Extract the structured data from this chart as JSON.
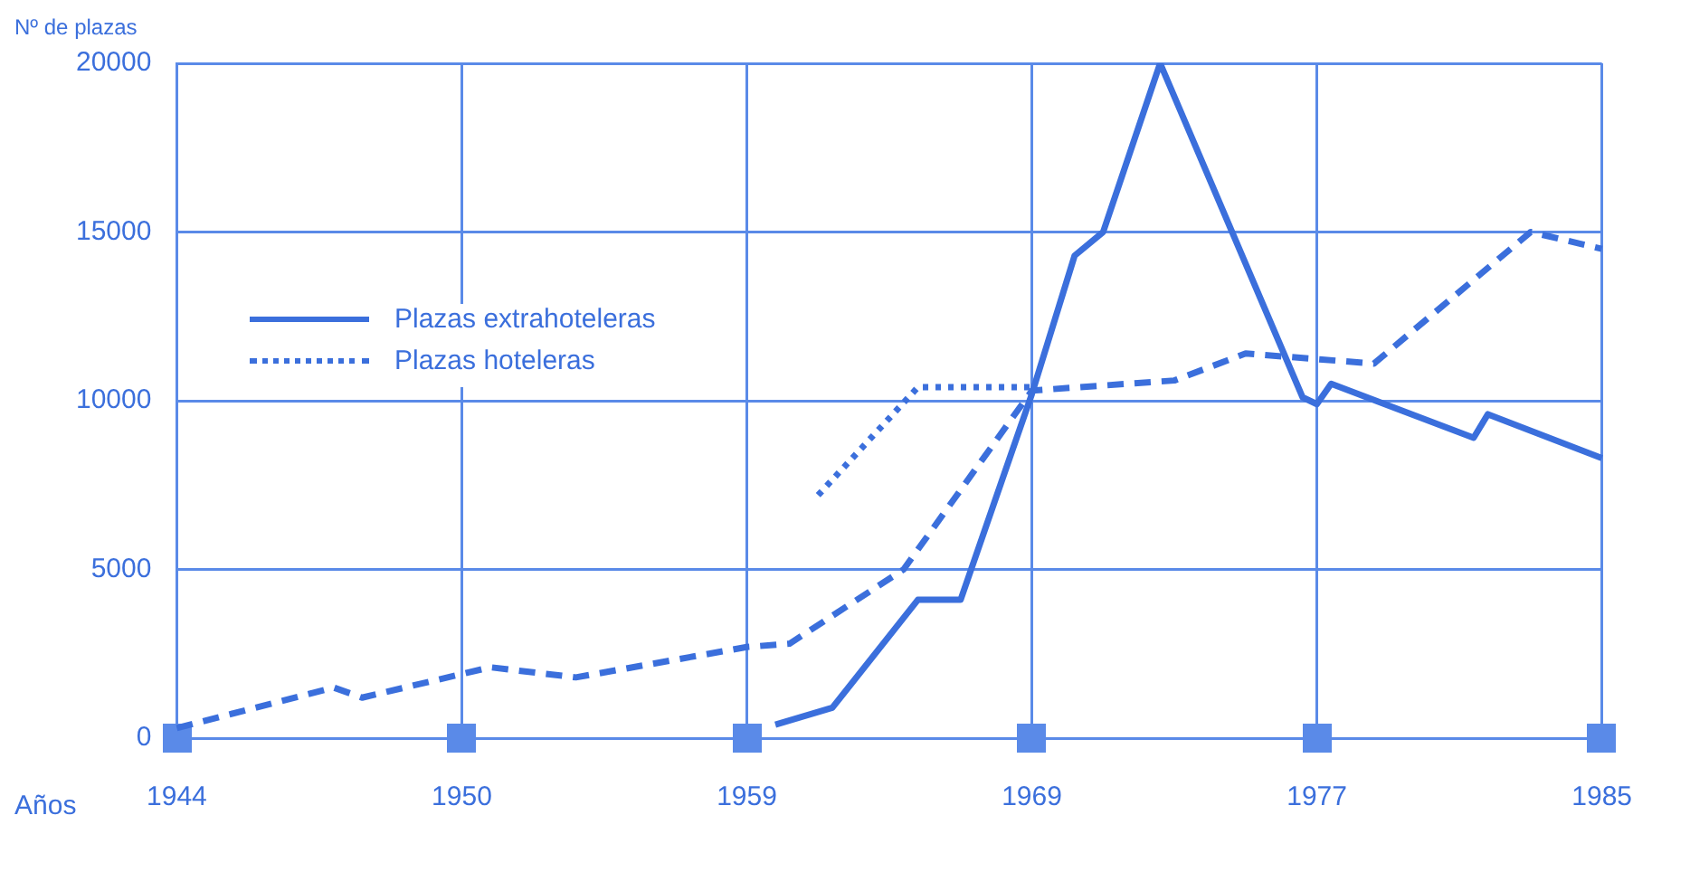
{
  "chart_data": {
    "type": "line",
    "ylabel": "Nº de plazas",
    "xlabel": "Años",
    "categories": [
      "1944",
      null,
      null,
      null,
      null,
      null,
      null,
      null,
      null,
      null,
      null,
      null,
      null,
      null,
      null,
      null,
      null,
      null,
      null,
      null,
      "1950",
      null,
      null,
      null,
      null,
      null,
      null,
      null,
      null,
      null,
      null,
      null,
      null,
      null,
      null,
      null,
      null,
      null,
      null,
      null,
      "1959",
      null,
      null,
      null,
      null,
      null,
      null,
      null,
      null,
      null,
      null,
      null,
      null,
      null,
      null,
      null,
      null,
      null,
      null,
      null,
      "1969",
      null,
      null,
      null,
      null,
      null,
      null,
      null,
      null,
      null,
      null,
      null,
      null,
      null,
      null,
      null,
      null,
      null,
      null,
      null,
      "1977",
      null,
      null,
      null,
      null,
      null,
      null,
      null,
      null,
      null,
      null,
      null,
      null,
      null,
      null,
      null,
      null,
      null,
      null,
      null,
      "1985"
    ],
    "series": [
      {
        "name": "Plazas extrahoteleras",
        "color": "#3b6fdc",
        "line_style": "solid",
        "values": [
          null,
          null,
          null,
          null,
          null,
          null,
          null,
          null,
          null,
          null,
          null,
          null,
          null,
          null,
          null,
          null,
          null,
          null,
          null,
          null,
          null,
          null,
          null,
          null,
          null,
          null,
          null,
          null,
          null,
          null,
          null,
          null,
          null,
          null,
          null,
          null,
          null,
          null,
          null,
          null,
          null,
          null,
          400,
          null,
          null,
          null,
          900,
          null,
          null,
          null,
          null,
          null,
          4100,
          null,
          null,
          4100,
          null,
          null,
          null,
          null,
          10200,
          null,
          null,
          14300,
          null,
          15000,
          null,
          null,
          null,
          20000,
          null,
          null,
          null,
          null,
          null,
          null,
          null,
          null,
          null,
          10100,
          9900,
          10500,
          null,
          null,
          null,
          null,
          null,
          null,
          null,
          null,
          null,
          8900,
          9600,
          null,
          null,
          null,
          null,
          null,
          null,
          null,
          8300
        ]
      },
      {
        "name": "Plazas hoteleras",
        "color": "#3b6fdc",
        "line_style": "dotted",
        "values": [
          null,
          null,
          null,
          null,
          null,
          null,
          null,
          null,
          null,
          null,
          null,
          null,
          null,
          null,
          null,
          null,
          null,
          null,
          null,
          null,
          null,
          null,
          null,
          null,
          null,
          null,
          null,
          null,
          null,
          null,
          null,
          null,
          null,
          null,
          null,
          null,
          null,
          null,
          null,
          null,
          null,
          null,
          null,
          null,
          null,
          7200,
          null,
          null,
          null,
          null,
          null,
          null,
          10400,
          null,
          null,
          null,
          null,
          null,
          null,
          null,
          10400,
          null,
          null,
          null,
          null,
          null,
          null,
          null,
          null,
          null,
          null,
          null,
          null,
          null,
          null,
          null,
          null,
          null,
          null,
          null,
          null,
          null,
          null,
          null,
          null,
          null,
          null,
          null,
          null,
          null,
          null,
          null,
          null,
          null,
          null,
          null,
          null,
          null,
          null,
          null,
          null
        ]
      },
      {
        "color": "#3b6fdc",
        "line_style": "dashed",
        "values": [
          300,
          null,
          null,
          null,
          null,
          null,
          null,
          null,
          null,
          null,
          null,
          1500,
          null,
          1200,
          null,
          null,
          null,
          null,
          null,
          null,
          null,
          null,
          2100,
          null,
          null,
          null,
          null,
          null,
          1800,
          null,
          null,
          null,
          null,
          null,
          null,
          null,
          null,
          null,
          null,
          null,
          2700,
          null,
          null,
          2800,
          null,
          null,
          null,
          null,
          null,
          null,
          null,
          5000,
          null,
          null,
          null,
          null,
          null,
          null,
          null,
          null,
          10300,
          null,
          null,
          null,
          null,
          null,
          null,
          null,
          null,
          null,
          10600,
          null,
          null,
          null,
          null,
          11400,
          null,
          null,
          null,
          null,
          null,
          null,
          null,
          null,
          11100,
          null,
          null,
          null,
          null,
          null,
          null,
          null,
          null,
          null,
          null,
          15000,
          null,
          null,
          null,
          null,
          14500
        ]
      }
    ],
    "ylim": [
      0,
      20000
    ],
    "yticks": [
      0,
      5000,
      10000,
      15000,
      20000
    ],
    "grid": true,
    "legend": "left",
    "marker": "none"
  }
}
